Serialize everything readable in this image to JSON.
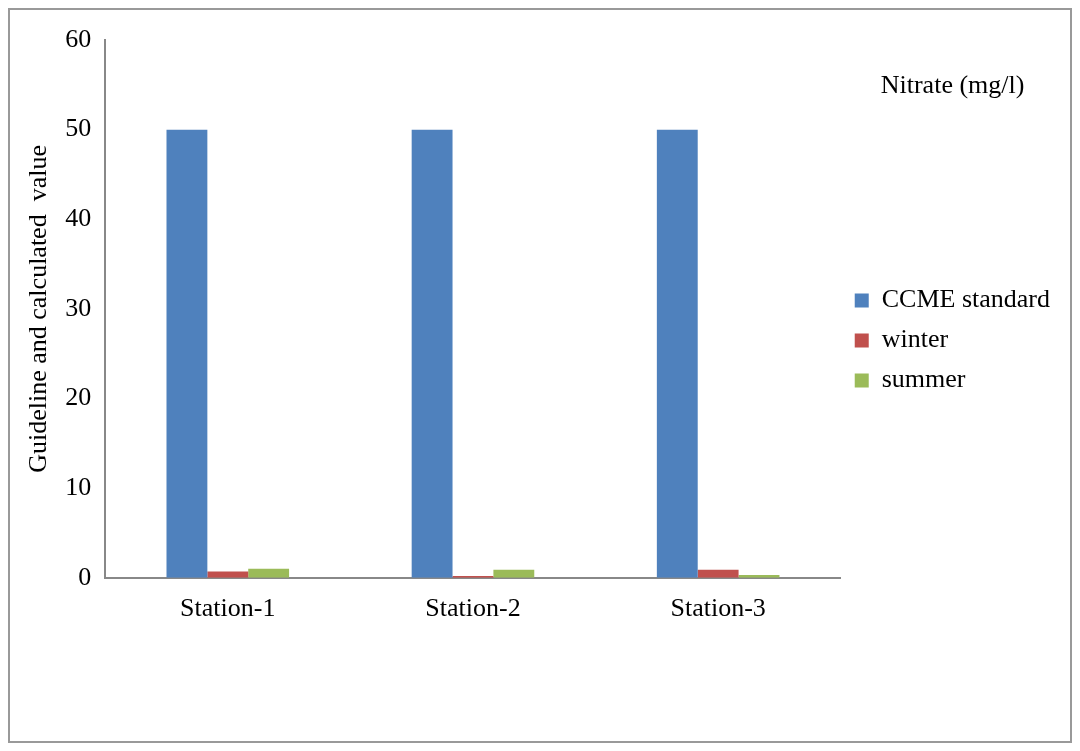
{
  "chart_data": {
    "type": "bar",
    "title": "Nitrate (mg/l)",
    "ylabel": "Guideline and calculated  value",
    "categories": [
      "Station-1",
      "Station-2",
      "Station-3"
    ],
    "series": [
      {
        "name": "CCME standard",
        "color": "#4f81bd",
        "values": [
          50,
          50,
          50
        ]
      },
      {
        "name": "winter",
        "color": "#c0504d",
        "values": [
          0.7,
          0.2,
          0.9
        ]
      },
      {
        "name": "summer",
        "color": "#9bbb59",
        "values": [
          1.0,
          0.9,
          0.3
        ]
      }
    ],
    "ylim": [
      0,
      60
    ],
    "yticks": [
      0,
      10,
      20,
      30,
      40,
      50,
      60
    ],
    "grid": false,
    "legend": "right"
  }
}
